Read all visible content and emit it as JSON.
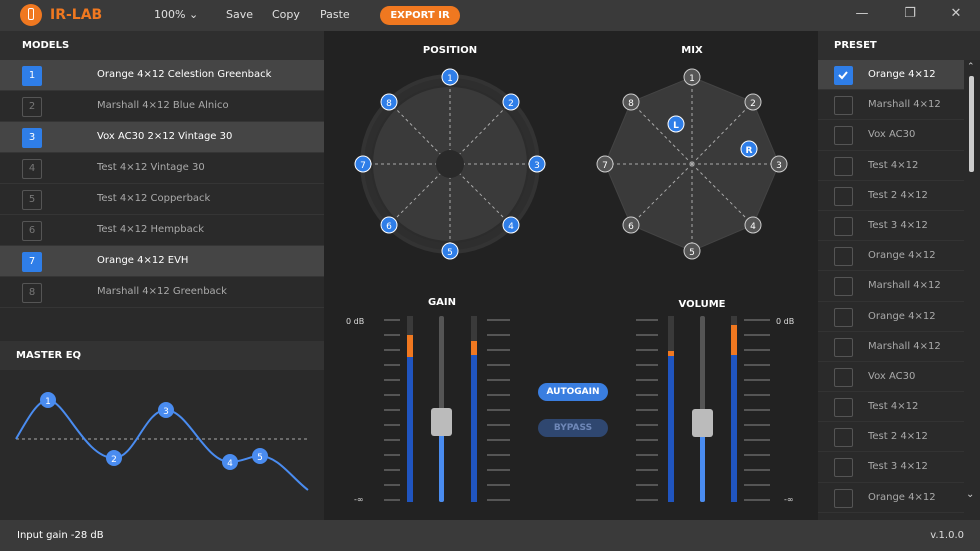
{
  "app": {
    "title": "IR-LAB",
    "zoom": "100%",
    "save": "Save",
    "copy": "Copy",
    "paste": "Paste",
    "export": "EXPORT IR",
    "accent": "#f07820"
  },
  "window": {
    "minimize": "—",
    "maximize": "❐",
    "close": "✕"
  },
  "models": {
    "header": "MODELS",
    "items": [
      {
        "num": "1",
        "name": "Orange 4×12 Celestion Greenback",
        "active": true
      },
      {
        "num": "2",
        "name": "Marshall 4×12 Blue Alnico",
        "active": false
      },
      {
        "num": "3",
        "name": "Vox AC30 2×12 Vintage 30",
        "active": true
      },
      {
        "num": "4",
        "name": "Test 4×12 Vintage 30",
        "active": false
      },
      {
        "num": "5",
        "name": "Test 4×12 Copperback",
        "active": false
      },
      {
        "num": "6",
        "name": "Test 4×12 Hempback",
        "active": false
      },
      {
        "num": "7",
        "name": "Orange 4×12 EVH",
        "active": true
      },
      {
        "num": "8",
        "name": "Marshall 4×12 Greenback",
        "active": false
      }
    ]
  },
  "eq": {
    "header": "MASTER EQ",
    "points": [
      "1",
      "2",
      "3",
      "4",
      "5"
    ]
  },
  "position": {
    "title": "POSITION",
    "labels": [
      "1",
      "2",
      "3",
      "4",
      "5",
      "6",
      "7",
      "8"
    ]
  },
  "mix": {
    "title": "MIX",
    "labels": [
      "1",
      "2",
      "3",
      "4",
      "5",
      "6",
      "7",
      "8"
    ],
    "l": "L",
    "r": "R"
  },
  "gain": {
    "title": "GAIN",
    "top": "0 dB",
    "bottom": "-∞",
    "level": 0.38
  },
  "volume": {
    "title": "VOLUME",
    "top": "0 dB",
    "bottom": "-∞",
    "level": 0.4
  },
  "buttons": {
    "autogain": "AUTOGAIN",
    "bypass": "BYPASS"
  },
  "preset": {
    "header": "PRESET",
    "items": [
      {
        "name": "Orange 4×12",
        "checked": true
      },
      {
        "name": "Marshall 4×12",
        "checked": false
      },
      {
        "name": "Vox AC30",
        "checked": false
      },
      {
        "name": "Test 4×12",
        "checked": false
      },
      {
        "name": "Test 2 4×12",
        "checked": false
      },
      {
        "name": "Test 3 4×12",
        "checked": false
      },
      {
        "name": "Orange 4×12",
        "checked": false
      },
      {
        "name": "Marshall 4×12",
        "checked": false
      },
      {
        "name": "Orange 4×12",
        "checked": false
      },
      {
        "name": "Marshall 4×12",
        "checked": false
      },
      {
        "name": "Vox AC30",
        "checked": false
      },
      {
        "name": "Test 4×12",
        "checked": false
      },
      {
        "name": "Test 2 4×12",
        "checked": false
      },
      {
        "name": "Test 3 4×12",
        "checked": false
      },
      {
        "name": "Orange 4×12",
        "checked": false
      }
    ]
  },
  "status": {
    "input_gain": "Input gain -28 dB",
    "version": "v.1.0.0"
  }
}
